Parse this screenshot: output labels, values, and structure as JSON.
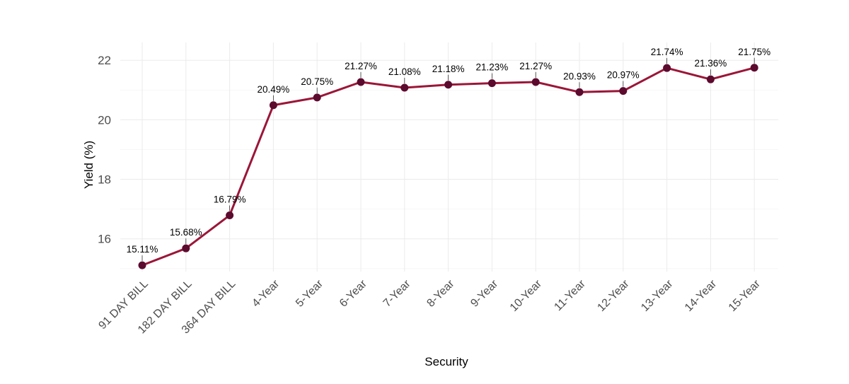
{
  "colors": {
    "line": "#9b1638",
    "point": "#5c0a2e",
    "grid": "#ebebeb"
  },
  "chart_data": {
    "type": "line",
    "title": "",
    "xlabel": "Security",
    "ylabel": "Yield (%)",
    "ylim": [
      14.9,
      22.6
    ],
    "yticks": [
      16,
      18,
      20,
      22
    ],
    "grid": true,
    "categories": [
      "91 DAY BILL",
      "182 DAY BILL",
      "364 DAY BILL",
      "4-Year",
      "5-Year",
      "6-Year",
      "7-Year",
      "8-Year",
      "9-Year",
      "10-Year",
      "11-Year",
      "12-Year",
      "13-Year",
      "14-Year",
      "15-Year"
    ],
    "values": [
      15.11,
      15.68,
      16.79,
      20.49,
      20.75,
      21.27,
      21.08,
      21.18,
      21.23,
      21.27,
      20.93,
      20.97,
      21.74,
      21.36,
      21.75
    ],
    "labels": [
      "15.11%",
      "15.68%",
      "16.79%",
      "20.49%",
      "20.75%",
      "21.27%",
      "21.08%",
      "21.18%",
      "21.23%",
      "21.27%",
      "20.93%",
      "20.97%",
      "21.74%",
      "21.36%",
      "21.75%"
    ]
  }
}
